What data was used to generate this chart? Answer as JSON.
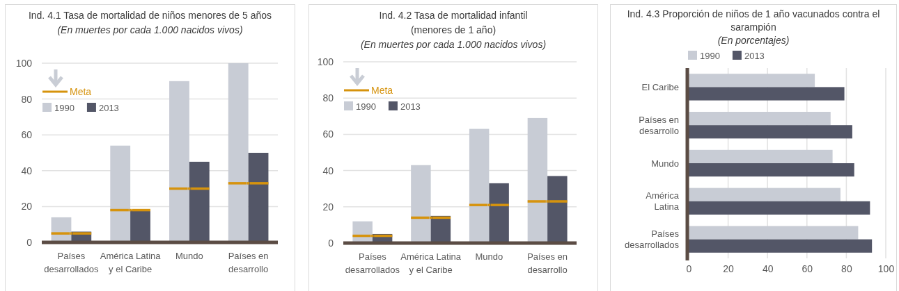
{
  "chart_data": [
    {
      "type": "bar",
      "title": "Ind. 4.1 Tasa de mortalidad de niños menores de 5 años",
      "subtitle": "(En muertes por cada 1.000 nacidos vivos)",
      "categories": [
        "Países desarrollados",
        "América Latina y el Caribe",
        "Mundo",
        "Países en desarrollo"
      ],
      "series": [
        {
          "name": "1990",
          "color": "#c8ccd5",
          "values": [
            14,
            54,
            90,
            100
          ]
        },
        {
          "name": "2013",
          "color": "#535667",
          "values": [
            6,
            18,
            45,
            50
          ]
        },
        {
          "name": "Meta",
          "type": "scatter",
          "color": "#d6930d",
          "values": [
            5,
            18,
            30,
            33
          ]
        }
      ],
      "ylim": [
        0,
        100
      ],
      "yticks": [
        0,
        20,
        40,
        60,
        80,
        100
      ],
      "grid": "y",
      "legend": "top left"
    },
    {
      "type": "bar",
      "title": "Ind. 4.2 Tasa de mortalidad infantil (menores de 1 año)",
      "subtitle": "(En muertes por cada 1.000 nacidos vivos)",
      "categories": [
        "Países desarrollados",
        "América Latina y el Caribe",
        "Mundo",
        "Países en desarrollo"
      ],
      "series": [
        {
          "name": "1990",
          "color": "#c8ccd5",
          "values": [
            12,
            43,
            63,
            69
          ]
        },
        {
          "name": "2013",
          "color": "#535667",
          "values": [
            5,
            15,
            33,
            37
          ]
        },
        {
          "name": "Meta",
          "type": "scatter",
          "color": "#d6930d",
          "values": [
            4,
            14,
            21,
            23
          ]
        }
      ],
      "ylim": [
        0,
        100
      ],
      "yticks": [
        0,
        20,
        40,
        60,
        80,
        100
      ],
      "grid": "y",
      "legend": "top left"
    },
    {
      "type": "bar",
      "orientation": "horizontal",
      "title": "Ind. 4.3 Proporción de niños de 1 año vacunados contra el sarampión",
      "subtitle": "(En porcentajes)",
      "categories": [
        "El Caribe",
        "Países en desarrollo",
        "Mundo",
        "América Latina",
        "Países desarrollados"
      ],
      "series": [
        {
          "name": "1990",
          "color": "#c8ccd5",
          "values": [
            64,
            72,
            73,
            77,
            86
          ]
        },
        {
          "name": "2013",
          "color": "#535667",
          "values": [
            79,
            83,
            84,
            92,
            93
          ]
        }
      ],
      "xlim": [
        0,
        100
      ],
      "xticks": [
        0,
        20,
        40,
        60,
        80,
        100
      ],
      "grid": "x",
      "legend": "top"
    }
  ]
}
